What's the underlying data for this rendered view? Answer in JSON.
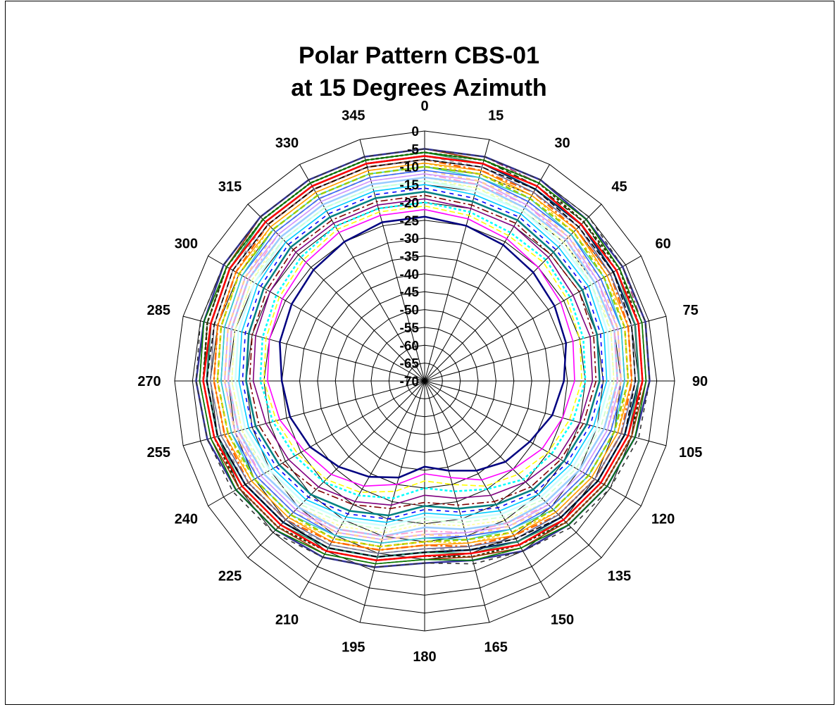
{
  "chart_data": {
    "type": "polar-line",
    "title": [
      "Polar Pattern CBS-01",
      "at 15 Degrees Azimuth"
    ],
    "angle_labels": [
      "0",
      "15",
      "30",
      "45",
      "60",
      "75",
      "90",
      "105",
      "120",
      "135",
      "150",
      "165",
      "180",
      "195",
      "210",
      "225",
      "240",
      "255",
      "270",
      "285",
      "300",
      "315",
      "330",
      "345"
    ],
    "radial_labels": [
      "0",
      "-5",
      "-10",
      "-15",
      "-20",
      "-25",
      "-30",
      "-35",
      "-40",
      "-45",
      "-50",
      "-55",
      "-60",
      "-65",
      "-70"
    ],
    "rlim": [
      -70,
      0
    ],
    "angles_deg": [
      0,
      15,
      30,
      45,
      60,
      75,
      90,
      105,
      120,
      135,
      150,
      165,
      180,
      195,
      210,
      225,
      240,
      255,
      270,
      285,
      300,
      315,
      330,
      345
    ],
    "series": [
      {
        "color": "#000080",
        "values": [
          -24,
          -25,
          -26,
          -27,
          -28,
          -29,
          -31,
          -33,
          -36,
          -38,
          -41,
          -44,
          -46,
          -42,
          -39,
          -36,
          -33,
          -31,
          -30,
          -28,
          -27,
          -26,
          -25,
          -24
        ]
      },
      {
        "color": "#FF00FF",
        "values": [
          -22,
          -23,
          -24,
          -25,
          -26,
          -27,
          -28,
          -30,
          -32,
          -35,
          -38,
          -42,
          -44,
          -40,
          -36,
          -33,
          -31,
          -28,
          -26,
          -25,
          -24,
          -23,
          -22,
          -22
        ]
      },
      {
        "color": "#FFFF00",
        "values": [
          -21,
          -22,
          -23,
          -23,
          -24,
          -25,
          -26,
          -28,
          -30,
          -33,
          -36,
          -40,
          -42,
          -38,
          -34,
          -31,
          -29,
          -27,
          -25,
          -24,
          -23,
          -22,
          -21,
          -21
        ]
      },
      {
        "color": "#00FFFF",
        "values": [
          -20,
          -21,
          -22,
          -22,
          -23,
          -24,
          -25,
          -27,
          -29,
          -31,
          -35,
          -38,
          -40,
          -36,
          -33,
          -30,
          -28,
          -26,
          -24,
          -23,
          -22,
          -21,
          -20,
          -20
        ]
      },
      {
        "color": "#800080",
        "values": [
          -19,
          -20,
          -20,
          -21,
          -22,
          -22,
          -23,
          -25,
          -27,
          -30,
          -33,
          -36,
          -38,
          -34,
          -31,
          -28,
          -26,
          -24,
          -22,
          -21,
          -20,
          -19,
          -19,
          -19
        ]
      },
      {
        "color": "#800000",
        "values": [
          -18,
          -19,
          -19,
          -20,
          -20,
          -21,
          -22,
          -24,
          -26,
          -28,
          -31,
          -34,
          -36,
          -33,
          -30,
          -27,
          -24,
          -22,
          -21,
          -20,
          -19,
          -18,
          -18,
          -18
        ]
      },
      {
        "color": "#008080",
        "values": [
          -17,
          -18,
          -18,
          -19,
          -19,
          -20,
          -21,
          -23,
          -25,
          -27,
          -30,
          -33,
          -35,
          -31,
          -28,
          -25,
          -23,
          -21,
          -20,
          -19,
          -18,
          -17,
          -17,
          -17
        ]
      },
      {
        "color": "#0000FF",
        "values": [
          -16,
          -17,
          -17,
          -18,
          -18,
          -19,
          -20,
          -22,
          -24,
          -26,
          -29,
          -32,
          -34,
          -30,
          -27,
          -24,
          -22,
          -20,
          -19,
          -18,
          -17,
          -16,
          -16,
          -16
        ]
      },
      {
        "color": "#00CCFF",
        "values": [
          -15,
          -16,
          -16,
          -17,
          -17,
          -18,
          -19,
          -21,
          -23,
          -25,
          -28,
          -31,
          -33,
          -29,
          -26,
          -23,
          -21,
          -19,
          -18,
          -17,
          -16,
          -15,
          -15,
          -15
        ]
      },
      {
        "color": "#CCFFFF",
        "values": [
          -14,
          -15,
          -15,
          -16,
          -16,
          -17,
          -18,
          -20,
          -22,
          -24,
          -27,
          -30,
          -32,
          -28,
          -25,
          -22,
          -20,
          -18,
          -17,
          -16,
          -15,
          -14,
          -14,
          -14
        ]
      },
      {
        "color": "#CCFFCC",
        "values": [
          -14,
          -14,
          -15,
          -15,
          -16,
          -16,
          -17,
          -19,
          -21,
          -23,
          -26,
          -29,
          -31,
          -27,
          -24,
          -21,
          -19,
          -17,
          -16,
          -15,
          -14,
          -14,
          -14,
          -14
        ]
      },
      {
        "color": "#FFFF99",
        "values": [
          -13,
          -14,
          -14,
          -15,
          -15,
          -16,
          -17,
          -18,
          -20,
          -22,
          -25,
          -28,
          -30,
          -26,
          -23,
          -20,
          -18,
          -17,
          -16,
          -15,
          -14,
          -13,
          -13,
          -13
        ]
      },
      {
        "color": "#99CCFF",
        "values": [
          -13,
          -13,
          -14,
          -14,
          -15,
          -15,
          -16,
          -18,
          -20,
          -22,
          -24,
          -27,
          -29,
          -25,
          -22,
          -20,
          -18,
          -16,
          -15,
          -14,
          -13,
          -13,
          -13,
          -13
        ]
      },
      {
        "color": "#FF99CC",
        "values": [
          -12,
          -13,
          -13,
          -14,
          -14,
          -15,
          -16,
          -17,
          -19,
          -21,
          -24,
          -26,
          -28,
          -25,
          -22,
          -19,
          -17,
          -16,
          -15,
          -14,
          -13,
          -12,
          -12,
          -12
        ]
      },
      {
        "color": "#CC99FF",
        "values": [
          -12,
          -12,
          -13,
          -13,
          -14,
          -14,
          -15,
          -17,
          -19,
          -21,
          -23,
          -26,
          -27,
          -24,
          -21,
          -19,
          -17,
          -15,
          -14,
          -13,
          -12,
          -12,
          -12,
          -12
        ]
      },
      {
        "color": "#FFCC99",
        "values": [
          -11,
          -12,
          -12,
          -13,
          -13,
          -14,
          -15,
          -16,
          -18,
          -20,
          -23,
          -25,
          -27,
          -24,
          -21,
          -18,
          -16,
          -15,
          -14,
          -13,
          -12,
          -11,
          -11,
          -11
        ]
      },
      {
        "color": "#3366FF",
        "values": [
          -11,
          -11,
          -12,
          -12,
          -13,
          -13,
          -14,
          -16,
          -18,
          -20,
          -22,
          -25,
          -26,
          -23,
          -20,
          -18,
          -16,
          -14,
          -13,
          -12,
          -11,
          -11,
          -11,
          -11
        ]
      },
      {
        "color": "#33CCCC",
        "values": [
          -10,
          -11,
          -11,
          -12,
          -12,
          -13,
          -14,
          -15,
          -17,
          -19,
          -22,
          -24,
          -26,
          -23,
          -20,
          -17,
          -15,
          -14,
          -13,
          -12,
          -11,
          -10,
          -10,
          -10
        ]
      },
      {
        "color": "#99CC00",
        "values": [
          -10,
          -10,
          -11,
          -11,
          -12,
          -12,
          -13,
          -15,
          -17,
          -19,
          -21,
          -24,
          -25,
          -22,
          -19,
          -17,
          -15,
          -13,
          -12,
          -11,
          -10,
          -10,
          -10,
          -10
        ]
      },
      {
        "color": "#FFCC00",
        "values": [
          -9,
          -10,
          -10,
          -11,
          -11,
          -12,
          -13,
          -14,
          -16,
          -18,
          -21,
          -23,
          -25,
          -22,
          -19,
          -16,
          -14,
          -13,
          -12,
          -11,
          -10,
          -9,
          -9,
          -9
        ]
      },
      {
        "color": "#FF9900",
        "values": [
          -9,
          -9,
          -10,
          -10,
          -11,
          -11,
          -12,
          -14,
          -16,
          -18,
          -20,
          -23,
          -24,
          -21,
          -18,
          -16,
          -14,
          -12,
          -11,
          -10,
          -9,
          -9,
          -9,
          -9
        ]
      },
      {
        "color": "#FF6600",
        "values": [
          -8,
          -9,
          -9,
          -10,
          -10,
          -11,
          -12,
          -13,
          -15,
          -17,
          -20,
          -22,
          -24,
          -21,
          -18,
          -15,
          -13,
          -12,
          -11,
          -10,
          -9,
          -8,
          -8,
          -8
        ]
      },
      {
        "color": "#666699",
        "values": [
          -8,
          -8,
          -9,
          -9,
          -10,
          -10,
          -11,
          -13,
          -15,
          -17,
          -19,
          -22,
          -23,
          -20,
          -17,
          -15,
          -13,
          -11,
          -10,
          -9,
          -8,
          -8,
          -8,
          -8
        ]
      },
      {
        "color": "#969696",
        "values": [
          -7,
          -8,
          -8,
          -9,
          -9,
          -10,
          -11,
          -12,
          -14,
          -16,
          -19,
          -21,
          -23,
          -20,
          -17,
          -14,
          -12,
          -11,
          -10,
          -9,
          -8,
          -7,
          -7,
          -7
        ]
      },
      {
        "color": "#003366",
        "values": [
          -7,
          -7,
          -8,
          -8,
          -9,
          -9,
          -10,
          -12,
          -14,
          -16,
          -18,
          -21,
          -22,
          -19,
          -16,
          -14,
          -12,
          -10,
          -9,
          -8,
          -7,
          -7,
          -7,
          -7
        ]
      },
      {
        "color": "#339966",
        "values": [
          -6,
          -7,
          -7,
          -8,
          -8,
          -9,
          -10,
          -11,
          -13,
          -15,
          -18,
          -20,
          -22,
          -19,
          -16,
          -13,
          -11,
          -10,
          -9,
          -8,
          -7,
          -6,
          -6,
          -6
        ]
      },
      {
        "color": "#003300",
        "values": [
          -6,
          -6,
          -7,
          -7,
          -8,
          -8,
          -9,
          -11,
          -13,
          -15,
          -17,
          -20,
          -21,
          -18,
          -15,
          -13,
          -11,
          -9,
          -8,
          -7,
          -6,
          -6,
          -6,
          -6
        ]
      },
      {
        "color": "#333300",
        "values": [
          -6,
          -6,
          -6,
          -7,
          -7,
          -8,
          -9,
          -10,
          -12,
          -14,
          -17,
          -19,
          -21,
          -18,
          -15,
          -12,
          -10,
          -9,
          -8,
          -7,
          -6,
          -6,
          -6,
          -6
        ]
      },
      {
        "color": "#993300",
        "values": [
          -5,
          -6,
          -6,
          -6,
          -7,
          -7,
          -8,
          -10,
          -12,
          -14,
          -16,
          -19,
          -20,
          -17,
          -14,
          -12,
          -10,
          -8,
          -7,
          -6,
          -6,
          -5,
          -5,
          -5
        ]
      },
      {
        "color": "#993366",
        "values": [
          -5,
          -5,
          -6,
          -6,
          -6,
          -7,
          -8,
          -9,
          -11,
          -13,
          -16,
          -18,
          -20,
          -17,
          -14,
          -11,
          -9,
          -8,
          -7,
          -6,
          -5,
          -5,
          -5,
          -5
        ]
      },
      {
        "color": "#333399",
        "values": [
          -5,
          -5,
          -5,
          -6,
          -6,
          -6,
          -7,
          -9,
          -11,
          -13,
          -15,
          -18,
          -19,
          -16,
          -13,
          -11,
          -9,
          -7,
          -6,
          -6,
          -5,
          -5,
          -5,
          -5
        ]
      },
      {
        "color": "#333333",
        "values": [
          -5,
          -5,
          -5,
          -5,
          -6,
          -6,
          -7,
          -8,
          -10,
          -12,
          -15,
          -17,
          -19,
          -16,
          -13,
          -10,
          -8,
          -7,
          -6,
          -5,
          -5,
          -5,
          -5,
          -5
        ]
      },
      {
        "color": "#008000",
        "values": [
          -6,
          -6,
          -6,
          -6,
          -7,
          -7,
          -8,
          -9,
          -11,
          -13,
          -16,
          -18,
          -20,
          -17,
          -14,
          -11,
          -9,
          -8,
          -7,
          -6,
          -6,
          -6,
          -6,
          -6
        ]
      },
      {
        "color": "#FF0000",
        "values": [
          -7,
          -7,
          -7,
          -8,
          -8,
          -8,
          -9,
          -11,
          -13,
          -15,
          -17,
          -20,
          -21,
          -18,
          -15,
          -13,
          -11,
          -9,
          -8,
          -8,
          -7,
          -7,
          -7,
          -7
        ]
      },
      {
        "color": "#000000",
        "values": [
          -8,
          -8,
          -8,
          -9,
          -9,
          -10,
          -11,
          -12,
          -14,
          -16,
          -19,
          -21,
          -22,
          -19,
          -16,
          -14,
          -12,
          -10,
          -9,
          -9,
          -8,
          -8,
          -8,
          -8
        ]
      }
    ]
  }
}
